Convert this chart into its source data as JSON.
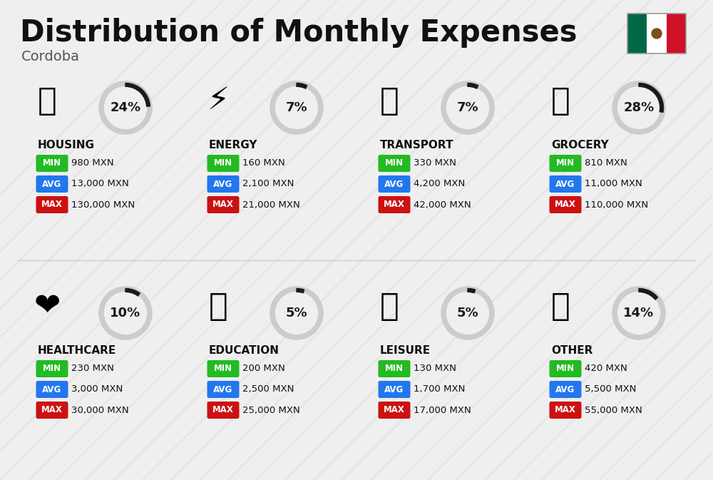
{
  "title": "Distribution of Monthly Expenses",
  "subtitle": "Cordoba",
  "background_color": "#efefef",
  "categories": [
    {
      "name": "HOUSING",
      "pct": 24,
      "min_val": "980 MXN",
      "avg_val": "13,000 MXN",
      "max_val": "130,000 MXN",
      "row": 0,
      "col": 0
    },
    {
      "name": "ENERGY",
      "pct": 7,
      "min_val": "160 MXN",
      "avg_val": "2,100 MXN",
      "max_val": "21,000 MXN",
      "row": 0,
      "col": 1
    },
    {
      "name": "TRANSPORT",
      "pct": 7,
      "min_val": "330 MXN",
      "avg_val": "4,200 MXN",
      "max_val": "42,000 MXN",
      "row": 0,
      "col": 2
    },
    {
      "name": "GROCERY",
      "pct": 28,
      "min_val": "810 MXN",
      "avg_val": "11,000 MXN",
      "max_val": "110,000 MXN",
      "row": 0,
      "col": 3
    },
    {
      "name": "HEALTHCARE",
      "pct": 10,
      "min_val": "230 MXN",
      "avg_val": "3,000 MXN",
      "max_val": "30,000 MXN",
      "row": 1,
      "col": 0
    },
    {
      "name": "EDUCATION",
      "pct": 5,
      "min_val": "200 MXN",
      "avg_val": "2,500 MXN",
      "max_val": "25,000 MXN",
      "row": 1,
      "col": 1
    },
    {
      "name": "LEISURE",
      "pct": 5,
      "min_val": "130 MXN",
      "avg_val": "1,700 MXN",
      "max_val": "17,000 MXN",
      "row": 1,
      "col": 2
    },
    {
      "name": "OTHER",
      "pct": 14,
      "min_val": "420 MXN",
      "avg_val": "5,500 MXN",
      "max_val": "55,000 MXN",
      "row": 1,
      "col": 3
    }
  ],
  "min_color": "#22bb22",
  "avg_color": "#2277ee",
  "max_color": "#cc1111",
  "donut_filled_color": "#1a1a1a",
  "donut_empty_color": "#cccccc",
  "donut_text_color": "#1a1a1a",
  "title_fontsize": 30,
  "subtitle_fontsize": 14,
  "cat_fontsize": 11,
  "val_fontsize": 10,
  "flag_green": "#006847",
  "flag_white": "#ffffff",
  "flag_red": "#ce1126"
}
